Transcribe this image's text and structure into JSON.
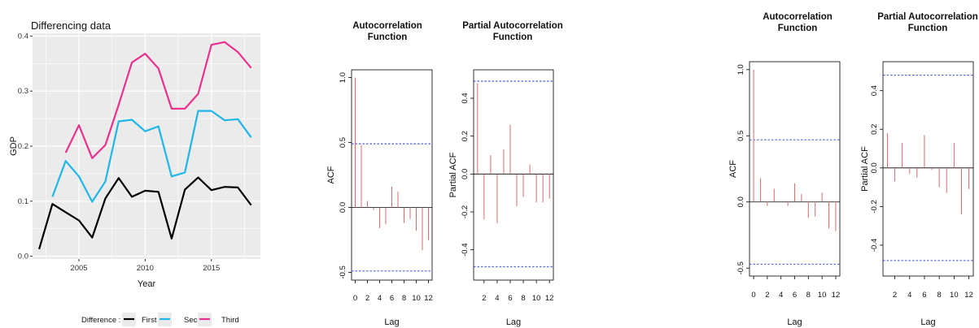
{
  "chart_data": [
    {
      "type": "line",
      "title": "Differencing data",
      "xlabel": "Year",
      "ylabel": "GDP",
      "xlim": [
        2001.5,
        2018.7
      ],
      "ylim": [
        -0.005,
        0.405
      ],
      "xticks": [
        2005,
        2010,
        2015
      ],
      "yticks": [
        0.0,
        0.1,
        0.2,
        0.3,
        0.4
      ],
      "ytick_labels": [
        "0.0",
        "0.1",
        "0.2",
        "0.3",
        "0.4"
      ],
      "legend_title": "Difference :",
      "legend_position": "bottom",
      "series": [
        {
          "name": "First",
          "color": "#000000",
          "x": [
            2002,
            2003,
            2004,
            2005,
            2006,
            2007,
            2008,
            2009,
            2010,
            2011,
            2012,
            2013,
            2014,
            2015,
            2016,
            2017,
            2018
          ],
          "y": [
            0.013,
            0.095,
            0.08,
            0.065,
            0.034,
            0.105,
            0.142,
            0.108,
            0.119,
            0.117,
            0.032,
            0.121,
            0.143,
            0.12,
            0.126,
            0.125,
            0.093
          ]
        },
        {
          "name": "Second",
          "color": "#1fb6e8",
          "x": [
            2003,
            2004,
            2005,
            2006,
            2007,
            2008,
            2009,
            2010,
            2011,
            2012,
            2013,
            2014,
            2015,
            2016,
            2017,
            2018
          ],
          "y": [
            0.108,
            0.173,
            0.145,
            0.099,
            0.136,
            0.245,
            0.248,
            0.227,
            0.236,
            0.145,
            0.152,
            0.264,
            0.264,
            0.247,
            0.249,
            0.216
          ]
        },
        {
          "name": "Third",
          "color": "#e8328f",
          "x": [
            2004,
            2005,
            2006,
            2007,
            2008,
            2009,
            2010,
            2011,
            2012,
            2013,
            2014,
            2015,
            2016,
            2017,
            2018
          ],
          "y": [
            0.188,
            0.238,
            0.178,
            0.202,
            0.275,
            0.352,
            0.368,
            0.341,
            0.268,
            0.268,
            0.295,
            0.384,
            0.389,
            0.371,
            0.342
          ]
        }
      ]
    },
    {
      "type": "bar",
      "title": "Autocorrelation Function",
      "xlabel": "Lag",
      "ylabel": "ACF",
      "xlim": [
        -0.6,
        12.6
      ],
      "ylim": [
        -0.56,
        1.06
      ],
      "xticks": [
        0,
        2,
        4,
        6,
        8,
        10,
        12
      ],
      "yticks": [
        -0.5,
        0.0,
        0.5,
        1.0
      ],
      "ytick_labels": [
        "-0.5",
        "0.0",
        "0.5",
        "1.0"
      ],
      "confidence": 0.49,
      "lags": [
        0,
        1,
        2,
        3,
        4,
        5,
        6,
        7,
        8,
        9,
        10,
        11,
        12
      ],
      "values": [
        1.0,
        0.48,
        0.05,
        -0.02,
        -0.16,
        -0.13,
        0.16,
        0.12,
        -0.12,
        -0.09,
        -0.18,
        -0.33,
        -0.25
      ]
    },
    {
      "type": "bar",
      "title": "Partial Autocorrelation Function",
      "xlabel": "Lag",
      "ylabel": "Partial ACF",
      "xlim": [
        0.4,
        12.6
      ],
      "ylim": [
        -0.56,
        0.55
      ],
      "xticks": [
        2,
        4,
        6,
        8,
        10,
        12
      ],
      "yticks": [
        -0.4,
        -0.2,
        0.0,
        0.2,
        0.4
      ],
      "ytick_labels": [
        "-0.4",
        "-0.2",
        "0.0",
        "0.2",
        "0.4"
      ],
      "confidence": 0.49,
      "lags": [
        1,
        2,
        3,
        4,
        5,
        6,
        7,
        8,
        9,
        10,
        11,
        12
      ],
      "values": [
        0.48,
        -0.24,
        0.1,
        -0.26,
        0.13,
        0.26,
        -0.17,
        -0.12,
        0.05,
        -0.15,
        -0.15,
        -0.13
      ]
    },
    {
      "type": "bar",
      "title": "Autocorrelation Function",
      "xlabel": "Lag",
      "ylabel": "ACF",
      "xlim": [
        -0.6,
        12.6
      ],
      "ylim": [
        -0.56,
        1.06
      ],
      "xticks": [
        0,
        2,
        4,
        6,
        8,
        10,
        12
      ],
      "yticks": [
        -0.5,
        0.0,
        0.5,
        1.0
      ],
      "ytick_labels": [
        "-0.5",
        "0.0",
        "0.5",
        "1.0"
      ],
      "confidence": 0.47,
      "lags": [
        0,
        1,
        2,
        3,
        4,
        5,
        6,
        7,
        8,
        9,
        10,
        11,
        12
      ],
      "values": [
        1.0,
        0.18,
        -0.03,
        0.1,
        0.0,
        -0.03,
        0.14,
        0.06,
        -0.12,
        -0.11,
        0.07,
        -0.2,
        -0.22
      ]
    },
    {
      "type": "bar",
      "title": "Partial Autocorrelation Function",
      "xlabel": "Lag",
      "ylabel": "Partial ACF",
      "xlim": [
        0.4,
        12.6
      ],
      "ylim": [
        -0.56,
        0.55
      ],
      "xticks": [
        2,
        4,
        6,
        8,
        10,
        12
      ],
      "yticks": [
        -0.4,
        -0.2,
        0.0,
        0.2,
        0.4
      ],
      "ytick_labels": [
        "-0.4",
        "-0.2",
        "0.0",
        "0.2",
        "0.4"
      ],
      "confidence": 0.48,
      "lags": [
        1,
        2,
        3,
        4,
        5,
        6,
        7,
        8,
        9,
        10,
        11,
        12
      ],
      "values": [
        0.18,
        -0.07,
        0.13,
        -0.03,
        -0.05,
        0.17,
        -0.01,
        -0.1,
        -0.13,
        0.13,
        -0.24,
        -0.11
      ]
    }
  ],
  "colors": {
    "panel_bg": "#ebebeb",
    "grid": "#ffffff",
    "acf_bar": "#d86a6a",
    "conf_line": "#2233dd"
  }
}
